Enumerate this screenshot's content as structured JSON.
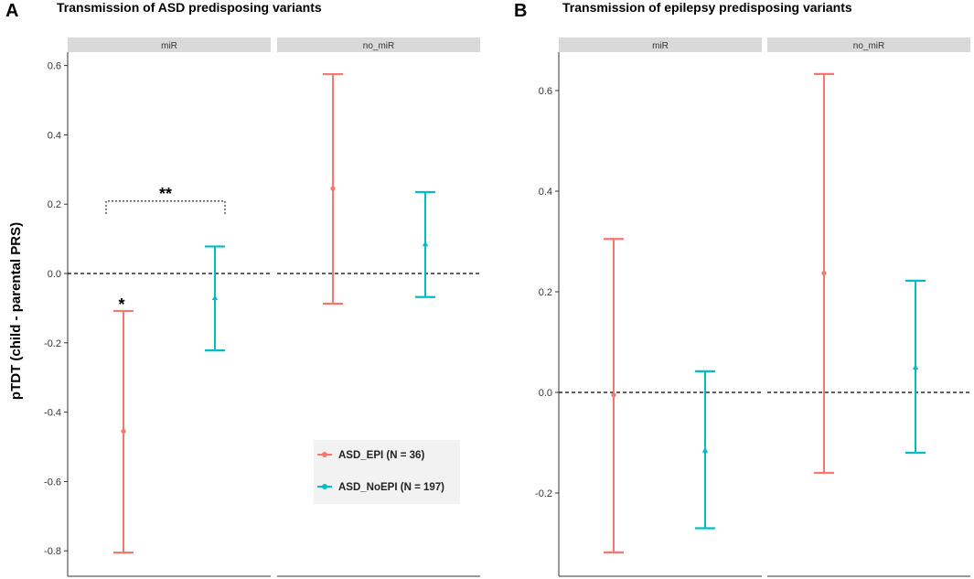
{
  "figure": {
    "ylabel": "pTDT (child - parental PRS)",
    "legend": [
      {
        "label": "ASD_EPI (N = 36)",
        "color": "#F8766D",
        "marker": "circle"
      },
      {
        "label": "ASD_NoEPI (N = 197)",
        "color": "#00BFC4",
        "marker": "triangle"
      }
    ]
  },
  "chart_data": [
    {
      "panel": "A",
      "type": "errorbar",
      "title": "Transmission of ASD predisposing variants",
      "ylabel": "pTDT (child - parental PRS)",
      "ylim": [
        -0.87,
        0.63
      ],
      "yticks": [
        0.6,
        0.4,
        0.2,
        0.0,
        -0.2,
        -0.4,
        -0.6,
        -0.8
      ],
      "ytick_labels": [
        "0.6",
        "0.4",
        "0.2",
        "0.0",
        "-0.2",
        "-0.4",
        "-0.6",
        "-0.8"
      ],
      "reference_line": 0.0,
      "facets": [
        {
          "label": "miR",
          "series": [
            {
              "name": "ASD_EPI (N = 36)",
              "mean": -0.455,
              "lower": -0.805,
              "upper": -0.108
            },
            {
              "name": "ASD_NoEPI (N = 197)",
              "mean": -0.07,
              "lower": -0.222,
              "upper": 0.078
            }
          ],
          "annotations": [
            {
              "text": "*",
              "target": "ASD_EPI (N = 36)"
            },
            {
              "text": "**",
              "type": "bracket",
              "y": 0.193
            }
          ]
        },
        {
          "label": "no_miR",
          "series": [
            {
              "name": "ASD_EPI (N = 36)",
              "mean": 0.245,
              "lower": -0.087,
              "upper": 0.575
            },
            {
              "name": "ASD_NoEPI (N = 197)",
              "mean": 0.085,
              "lower": -0.068,
              "upper": 0.235
            }
          ],
          "annotations": []
        }
      ]
    },
    {
      "panel": "B",
      "type": "errorbar",
      "title": "Transmission of epilepsy predisposing variants",
      "ylabel": "",
      "ylim": [
        -0.36,
        0.68
      ],
      "yticks": [
        0.6,
        0.4,
        0.2,
        0.0,
        -0.2
      ],
      "ytick_labels": [
        "0.6",
        "0.4",
        "0.2",
        "0.0",
        "-0.2"
      ],
      "reference_line": 0.0,
      "facets": [
        {
          "label": "miR",
          "series": [
            {
              "name": "ASD_EPI (N = 36)",
              "mean": -0.005,
              "lower": -0.318,
              "upper": 0.305
            },
            {
              "name": "ASD_NoEPI (N = 197)",
              "mean": -0.115,
              "lower": -0.27,
              "upper": 0.042
            }
          ],
          "annotations": []
        },
        {
          "label": "no_miR",
          "series": [
            {
              "name": "ASD_EPI (N = 36)",
              "mean": 0.237,
              "lower": -0.16,
              "upper": 0.633
            },
            {
              "name": "ASD_NoEPI (N = 197)",
              "mean": 0.05,
              "lower": -0.12,
              "upper": 0.222
            }
          ],
          "annotations": []
        }
      ]
    }
  ]
}
